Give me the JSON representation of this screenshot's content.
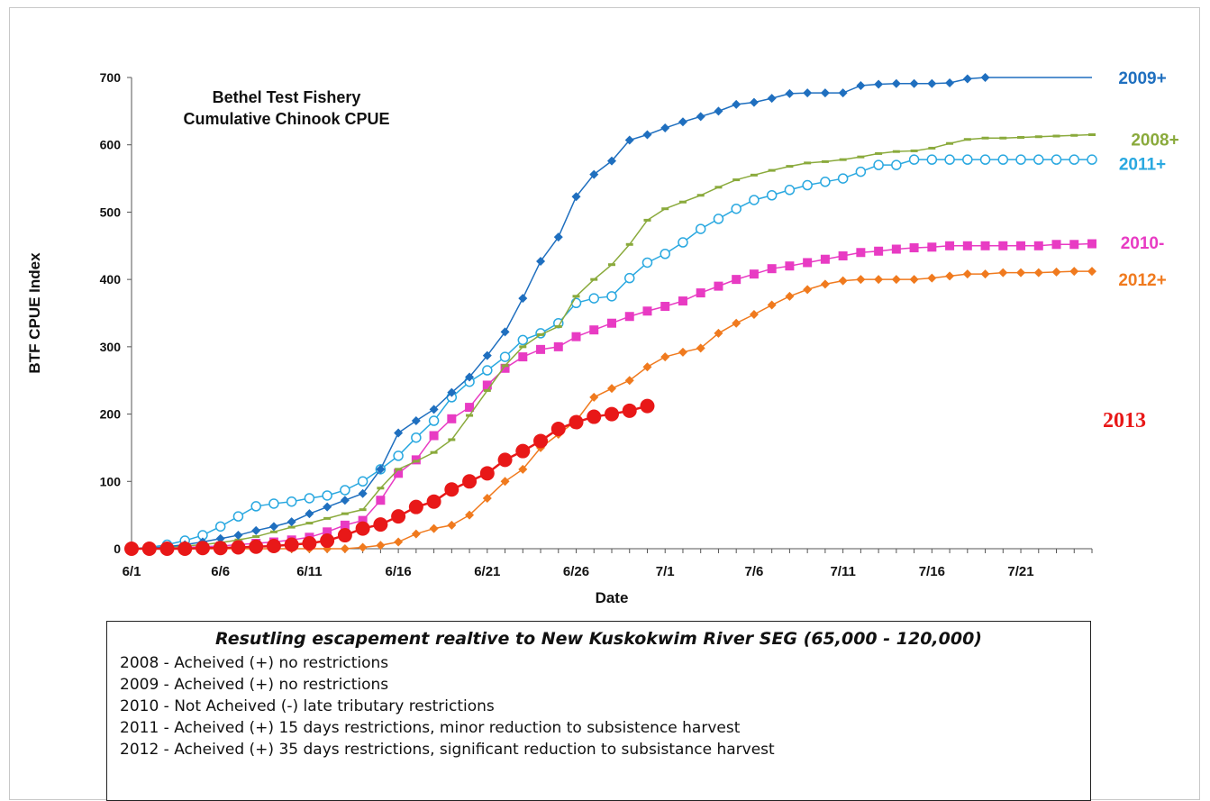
{
  "chart_data": {
    "type": "line",
    "title": "Bethel Test Fishery Cumulative Chinook CPUE",
    "title_lines": [
      "Bethel Test Fishery",
      "Cumulative Chinook CPUE"
    ],
    "xlabel": "Date",
    "ylabel": "BTF CPUE Index",
    "ylim": [
      0,
      700
    ],
    "yticks": [
      0,
      100,
      200,
      300,
      400,
      500,
      600,
      700
    ],
    "xlim": [
      "6/1",
      "7/25"
    ],
    "xticks": [
      "6/1",
      "6/6",
      "6/11",
      "6/16",
      "6/21",
      "6/26",
      "7/1",
      "7/6",
      "7/11",
      "7/16",
      "7/21"
    ],
    "grid": false,
    "legend": "end-of-line labels",
    "series": [
      {
        "name": "2009+",
        "color": "#1f6fbf",
        "marker": "diamond-filled",
        "x": [
          "6/1",
          "6/2",
          "6/3",
          "6/4",
          "6/5",
          "6/6",
          "6/7",
          "6/8",
          "6/9",
          "6/10",
          "6/11",
          "6/12",
          "6/13",
          "6/14",
          "6/15",
          "6/16",
          "6/17",
          "6/18",
          "6/19",
          "6/20",
          "6/21",
          "6/22",
          "6/23",
          "6/24",
          "6/25",
          "6/26",
          "6/27",
          "6/28",
          "6/29",
          "6/30",
          "7/1",
          "7/2",
          "7/3",
          "7/4",
          "7/5",
          "7/6",
          "7/7",
          "7/8",
          "7/9",
          "7/10",
          "7/11",
          "7/12",
          "7/13",
          "7/14",
          "7/15",
          "7/16",
          "7/17",
          "7/18",
          "7/19"
        ],
        "values": [
          0,
          1,
          3,
          6,
          10,
          15,
          20,
          27,
          33,
          40,
          52,
          62,
          72,
          82,
          118,
          172,
          190,
          207,
          232,
          255,
          287,
          322,
          372,
          427,
          463,
          523,
          556,
          576,
          607,
          615,
          625,
          634,
          642,
          650,
          660,
          663,
          669,
          676,
          677,
          677,
          677,
          688,
          690,
          691,
          691,
          691,
          692,
          698,
          700
        ],
        "extend_to": {
          "x": "7/25",
          "value": 700
        }
      },
      {
        "name": "2008+",
        "color": "#8aaa3c",
        "marker": "dash",
        "x": [
          "6/1",
          "6/2",
          "6/3",
          "6/4",
          "6/5",
          "6/6",
          "6/7",
          "6/8",
          "6/9",
          "6/10",
          "6/11",
          "6/12",
          "6/13",
          "6/14",
          "6/15",
          "6/16",
          "6/17",
          "6/18",
          "6/19",
          "6/20",
          "6/21",
          "6/22",
          "6/23",
          "6/24",
          "6/25",
          "6/26",
          "6/27",
          "6/28",
          "6/29",
          "6/30",
          "7/1",
          "7/2",
          "7/3",
          "7/4",
          "7/5",
          "7/6",
          "7/7",
          "7/8",
          "7/9",
          "7/10",
          "7/11",
          "7/12",
          "7/13",
          "7/14",
          "7/15",
          "7/16",
          "7/17",
          "7/18",
          "7/19",
          "7/20",
          "7/21",
          "7/22",
          "7/23",
          "7/24",
          "7/25"
        ],
        "values": [
          0,
          1,
          2,
          4,
          6,
          9,
          13,
          18,
          25,
          32,
          38,
          45,
          52,
          58,
          90,
          118,
          130,
          143,
          162,
          198,
          235,
          272,
          300,
          318,
          330,
          375,
          400,
          422,
          452,
          488,
          505,
          515,
          525,
          537,
          548,
          555,
          562,
          568,
          573,
          575,
          578,
          582,
          587,
          590,
          591,
          595,
          602,
          608,
          610,
          610,
          611,
          612,
          613,
          614,
          615
        ]
      },
      {
        "name": "2011+",
        "color": "#29a8e0",
        "marker": "circle-open",
        "x": [
          "6/1",
          "6/2",
          "6/3",
          "6/4",
          "6/5",
          "6/6",
          "6/7",
          "6/8",
          "6/9",
          "6/10",
          "6/11",
          "6/12",
          "6/13",
          "6/14",
          "6/15",
          "6/16",
          "6/17",
          "6/18",
          "6/19",
          "6/20",
          "6/21",
          "6/22",
          "6/23",
          "6/24",
          "6/25",
          "6/26",
          "6/27",
          "6/28",
          "6/29",
          "6/30",
          "7/1",
          "7/2",
          "7/3",
          "7/4",
          "7/5",
          "7/6",
          "7/7",
          "7/8",
          "7/9",
          "7/10",
          "7/11",
          "7/12",
          "7/13",
          "7/14",
          "7/15",
          "7/16",
          "7/17",
          "7/18",
          "7/19",
          "7/20",
          "7/21",
          "7/22",
          "7/23",
          "7/24",
          "7/25"
        ],
        "values": [
          0,
          2,
          6,
          12,
          20,
          33,
          48,
          63,
          67,
          70,
          75,
          79,
          87,
          100,
          118,
          138,
          165,
          190,
          225,
          248,
          265,
          285,
          310,
          320,
          335,
          365,
          372,
          375,
          402,
          425,
          438,
          455,
          475,
          490,
          505,
          518,
          525,
          533,
          540,
          545,
          550,
          560,
          570,
          570,
          578,
          578,
          578,
          578,
          578,
          578,
          578,
          578,
          578,
          578,
          578
        ]
      },
      {
        "name": "2010-",
        "color": "#e83bc3",
        "marker": "square-filled",
        "x": [
          "6/1",
          "6/2",
          "6/3",
          "6/4",
          "6/5",
          "6/6",
          "6/7",
          "6/8",
          "6/9",
          "6/10",
          "6/11",
          "6/12",
          "6/13",
          "6/14",
          "6/15",
          "6/16",
          "6/17",
          "6/18",
          "6/19",
          "6/20",
          "6/21",
          "6/22",
          "6/23",
          "6/24",
          "6/25",
          "6/26",
          "6/27",
          "6/28",
          "6/29",
          "6/30",
          "7/1",
          "7/2",
          "7/3",
          "7/4",
          "7/5",
          "7/6",
          "7/7",
          "7/8",
          "7/9",
          "7/10",
          "7/11",
          "7/12",
          "7/13",
          "7/14",
          "7/15",
          "7/16",
          "7/17",
          "7/18",
          "7/19",
          "7/20",
          "7/21",
          "7/22",
          "7/23",
          "7/24",
          "7/25"
        ],
        "values": [
          0,
          0,
          1,
          2,
          3,
          4,
          6,
          8,
          10,
          13,
          17,
          25,
          35,
          42,
          72,
          112,
          132,
          168,
          193,
          210,
          243,
          268,
          285,
          296,
          300,
          315,
          325,
          335,
          345,
          353,
          360,
          368,
          380,
          390,
          400,
          408,
          416,
          420,
          425,
          430,
          435,
          440,
          442,
          445,
          447,
          448,
          450,
          450,
          450,
          450,
          450,
          450,
          452,
          452,
          453
        ]
      },
      {
        "name": "2012+",
        "color": "#f07a1e",
        "marker": "diamond-filled",
        "x": [
          "6/1",
          "6/2",
          "6/3",
          "6/4",
          "6/5",
          "6/6",
          "6/7",
          "6/8",
          "6/9",
          "6/10",
          "6/11",
          "6/12",
          "6/13",
          "6/14",
          "6/15",
          "6/16",
          "6/17",
          "6/18",
          "6/19",
          "6/20",
          "6/21",
          "6/22",
          "6/23",
          "6/24",
          "6/25",
          "6/26",
          "6/27",
          "6/28",
          "6/29",
          "6/30",
          "7/1",
          "7/2",
          "7/3",
          "7/4",
          "7/5",
          "7/6",
          "7/7",
          "7/8",
          "7/9",
          "7/10",
          "7/11",
          "7/12",
          "7/13",
          "7/14",
          "7/15",
          "7/16",
          "7/17",
          "7/18",
          "7/19",
          "7/20",
          "7/21",
          "7/22",
          "7/23",
          "7/24",
          "7/25"
        ],
        "values": [
          0,
          0,
          0,
          0,
          0,
          0,
          0,
          0,
          0,
          0,
          0,
          0,
          0,
          2,
          5,
          10,
          22,
          30,
          35,
          50,
          75,
          100,
          118,
          150,
          170,
          190,
          225,
          238,
          250,
          270,
          285,
          292,
          298,
          320,
          335,
          348,
          362,
          375,
          385,
          393,
          398,
          400,
          400,
          400,
          400,
          402,
          405,
          408,
          408,
          410,
          410,
          410,
          411,
          412,
          412
        ]
      },
      {
        "name": "2013",
        "color": "#e81818",
        "marker": "circle-large",
        "x": [
          "6/1",
          "6/2",
          "6/3",
          "6/4",
          "6/5",
          "6/6",
          "6/7",
          "6/8",
          "6/9",
          "6/10",
          "6/11",
          "6/12",
          "6/13",
          "6/14",
          "6/15",
          "6/16",
          "6/17",
          "6/18",
          "6/19",
          "6/20",
          "6/21",
          "6/22",
          "6/23",
          "6/24",
          "6/25",
          "6/26",
          "6/27",
          "6/28",
          "6/29",
          "6/30"
        ],
        "values": [
          0,
          0,
          0,
          0,
          1,
          1,
          2,
          3,
          4,
          6,
          8,
          12,
          20,
          30,
          36,
          48,
          62,
          70,
          88,
          100,
          112,
          132,
          145,
          160,
          178,
          188,
          196,
          200,
          205,
          212
        ]
      }
    ]
  },
  "legend_box": {
    "title": "Resutling escapement realtive to New Kuskokwim River SEG (65,000 - 120,000)",
    "lines": [
      "2008 - Acheived (+) no restrictions",
      "2009 - Acheived (+) no restrictions",
      "2010 - Not Acheived (-) late tributary restrictions",
      "2011 - Acheived (+) 15 days restrictions, minor reduction to subsistence harvest",
      "2012 - Acheived (+) 35 days restrictions, significant reduction to subsistance harvest"
    ]
  }
}
